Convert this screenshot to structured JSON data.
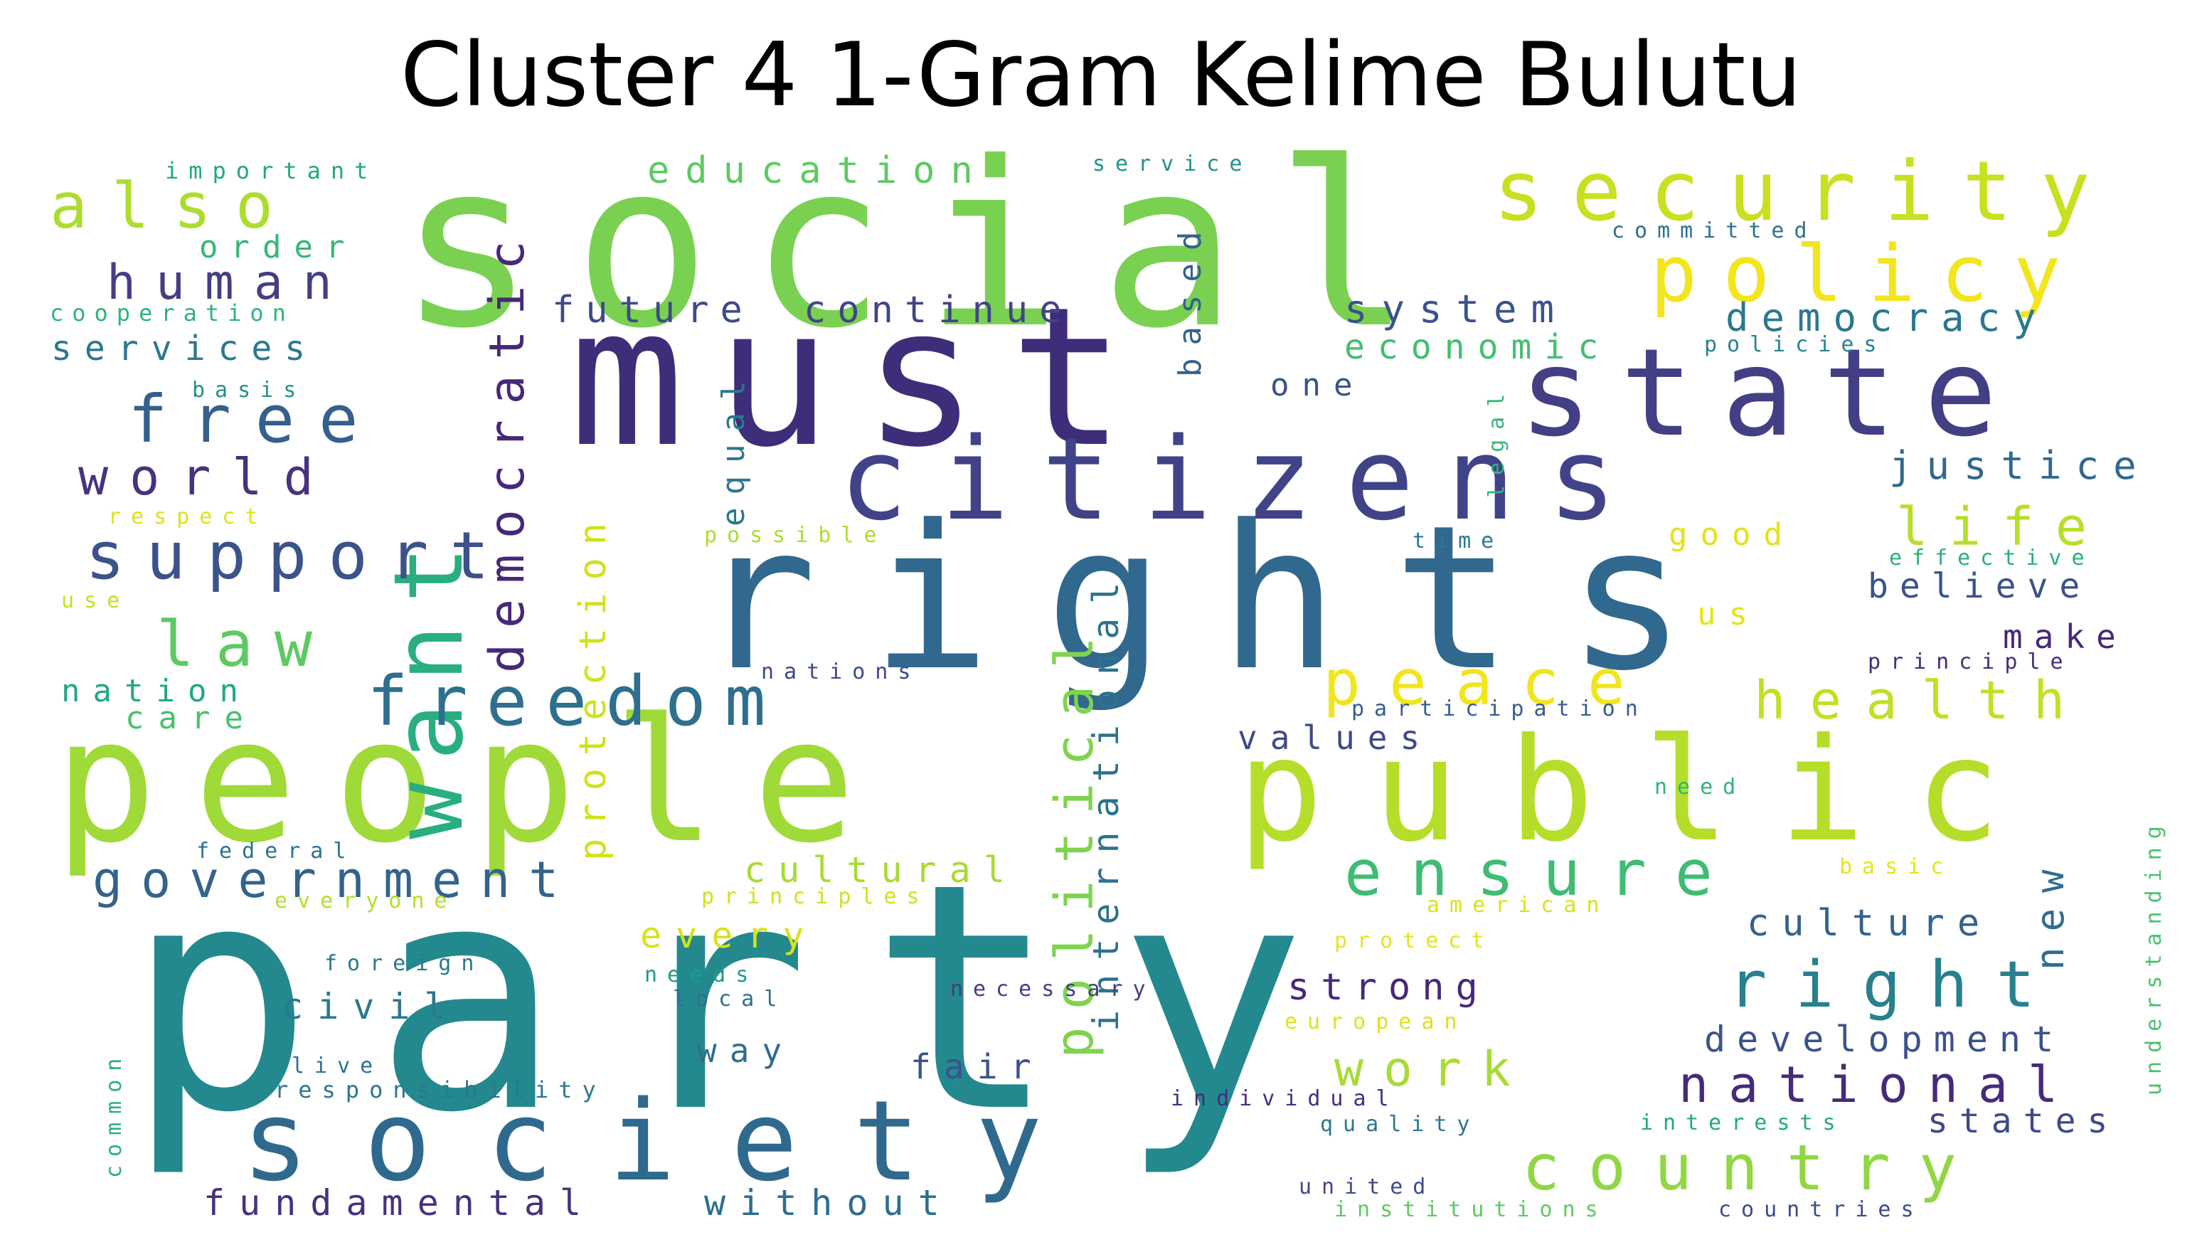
{
  "title": "Cluster 4 1-Gram Kelime Bulutu",
  "colors": {
    "dark_purple": "#472d7b",
    "indigo": "#3b528b",
    "blue": "#2c728e",
    "teal": "#21918c",
    "green": "#28ae80",
    "lime_green": "#5ec962",
    "yellow_green": "#addc30",
    "yellow": "#fde725"
  },
  "words": {
    "social": "social",
    "must": "must",
    "rights": "rights",
    "people": "people",
    "party": "party",
    "citizens": "citizens",
    "state": "state",
    "public": "public",
    "security": "security",
    "policy": "policy",
    "society": "society",
    "want": "want",
    "democratic": "democratic",
    "freedom": "freedom",
    "also": "also",
    "human": "human",
    "free": "free",
    "world": "world",
    "support": "support",
    "law": "law",
    "government": "government",
    "country": "country",
    "ensure": "ensure",
    "right": "right",
    "national": "national",
    "political": "political",
    "international": "international",
    "protection": "protection",
    "peace": "peace",
    "health": "health",
    "life": "life",
    "justice": "justice",
    "democracy": "democracy",
    "system": "system",
    "economic": "economic",
    "education": "education",
    "continue": "continue",
    "future": "future",
    "services": "services",
    "order": "order",
    "cooperation": "cooperation",
    "important": "important",
    "basis": "basis",
    "respect": "respect",
    "use": "use",
    "nation": "nation",
    "care": "care",
    "based": "based",
    "equal": "equal",
    "one": "one",
    "legal": "legal",
    "policies": "policies",
    "committed": "committed",
    "service": "service",
    "possible": "possible",
    "time": "time",
    "good": "good",
    "us": "us",
    "effective": "effective",
    "believe": "believe",
    "make": "make",
    "principle": "principle",
    "nations": "nations",
    "participation": "participation",
    "values": "values",
    "need": "need",
    "understanding": "understanding",
    "new": "new",
    "basic": "basic",
    "culture": "culture",
    "cultural": "cultural",
    "principles": "principles",
    "federal": "federal",
    "everyone": "everyone",
    "american": "american",
    "every": "every",
    "protect": "protect",
    "foreign": "foreign",
    "needs": "needs",
    "local": "local",
    "civil": "civil",
    "necessary": "necessary",
    "strong": "strong",
    "european": "european",
    "common": "common",
    "way": "way",
    "live": "live",
    "fair": "fair",
    "work": "work",
    "development": "development",
    "responsibility": "responsibility",
    "individual": "individual",
    "quality": "quality",
    "interests": "interests",
    "states": "states",
    "fundamental": "fundamental",
    "without": "without",
    "united": "united",
    "institutions": "institutions",
    "countries": "countries"
  }
}
